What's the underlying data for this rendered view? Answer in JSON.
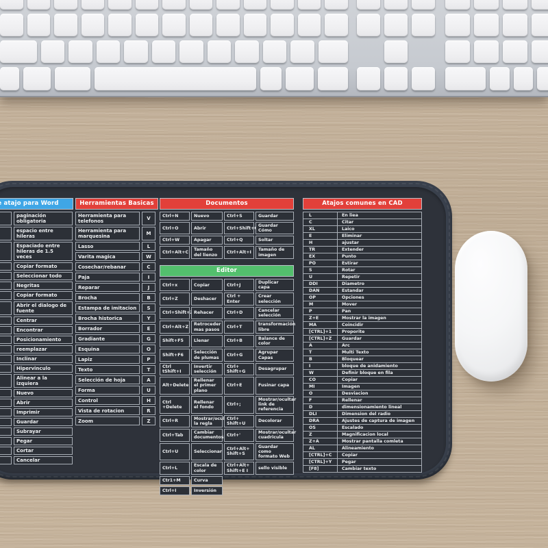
{
  "colors": {
    "pad_surface": "#2e323a",
    "pad_edge": "#39404c",
    "header_blue": "#3fa6e6",
    "header_red": "#e2403a",
    "header_green": "#53bf6d",
    "cell_background": "#2c3037",
    "cell_border": "#a9afb7",
    "text_light": "#eef0f2",
    "desk_wood": "#c2b09a",
    "keyboard_silver": "#c6cad0",
    "key_white": "#f3f3f5",
    "mouse_white": "#f5f6f7"
  },
  "word_section": {
    "title": "e atajo para Word",
    "rows": [
      {
        "key": "",
        "label": "paginación obligatoria"
      },
      {
        "key": "",
        "label": "espacio entre hileras"
      },
      {
        "key": "",
        "label": "Espaciado entre hileras de 1.5 veces"
      },
      {
        "key": "",
        "label": "Copiar formato"
      },
      {
        "key": "",
        "label": "Seleccionar todo"
      },
      {
        "key": "",
        "label": "Negritas"
      },
      {
        "key": "",
        "label": "Copiar formato"
      },
      {
        "key": "",
        "label": "Abrir el dialogo de fuente"
      },
      {
        "key": "",
        "label": "Centrar"
      },
      {
        "key": "",
        "label": "Encontrar"
      },
      {
        "key": "",
        "label": "Posicionamiento"
      },
      {
        "key": "",
        "label": "reemplazar"
      },
      {
        "key": "",
        "label": "Inclinar"
      },
      {
        "key": "",
        "label": "Hipervinculo"
      },
      {
        "key": "",
        "label": "Alinear a la izquiera"
      },
      {
        "key": "",
        "label": "Nuevo"
      },
      {
        "key": "",
        "label": "Abrir"
      },
      {
        "key": "",
        "label": "Imprimir"
      },
      {
        "key": "",
        "label": "Guardar"
      },
      {
        "key": "",
        "label": "Subrayar"
      },
      {
        "key": "",
        "label": "Pegar"
      },
      {
        "key": "",
        "label": "Cortar"
      },
      {
        "key": "",
        "label": "Cancelar"
      }
    ]
  },
  "tools_section": {
    "title": "Herramientas Basicas",
    "rows": [
      {
        "label": "Herramienta para telefonos",
        "key": "V"
      },
      {
        "label": "Herramienta para marquesina",
        "key": "M"
      },
      {
        "label": "Lasso",
        "key": "L"
      },
      {
        "label": "Varita magica",
        "key": "W"
      },
      {
        "label": "Cosechar/rebanar",
        "key": "C"
      },
      {
        "label": "Paja",
        "key": "I"
      },
      {
        "label": "Reparar",
        "key": "J"
      },
      {
        "label": "Brocha",
        "key": "B"
      },
      {
        "label": "Estampa de imitacion",
        "key": "S"
      },
      {
        "label": "Brocha historica",
        "key": "Y"
      },
      {
        "label": "Borrador",
        "key": "E"
      },
      {
        "label": "Gradiante",
        "key": "G"
      },
      {
        "label": "Esquina",
        "key": "O"
      },
      {
        "label": "Lapiz",
        "key": "P"
      },
      {
        "label": "Texto",
        "key": "T"
      },
      {
        "label": "Selección de hoja",
        "key": "A"
      },
      {
        "label": "Forma",
        "key": "U"
      },
      {
        "label": "Control",
        "key": "H"
      },
      {
        "label": "Vista de rotacion",
        "key": "R"
      },
      {
        "label": "Zoom",
        "key": "Z"
      }
    ]
  },
  "documents_section": {
    "title": "Documentos",
    "rows": [
      [
        "Ctrl+N",
        "Nuevo",
        "Ctrl+S",
        "Guardar"
      ],
      [
        "Ctrl+O",
        "Abrir",
        "Ctrl+Shift+C",
        "Guardar Cómo"
      ],
      [
        "Ctrl+W",
        "Apagar",
        "Ctrl+Q",
        "Soltar"
      ],
      [
        "Ctrl+Alt+C",
        "Tamaño del lienzo",
        "Ctrl+Alt+I",
        "Tamaño de imagen"
      ]
    ]
  },
  "editor_section": {
    "title": "Editor",
    "rows": [
      [
        "Ctrl+x",
        "Copiar",
        "Ctrl+J",
        "Duplicar capa"
      ],
      [
        "Ctrl+Z",
        "Deshacer",
        "Ctrl + Enter",
        "Crear selección"
      ],
      [
        "Ctrl+Shift+Z",
        "Rehacer",
        "Ctrl+D",
        "Cancelar selección"
      ],
      [
        "Ctrl+Alt+Z",
        "Retroceder mas pasos",
        "Ctrl+T",
        "transformación libre"
      ],
      [
        "Shift+F5",
        "Llenar",
        "Ctrl+B",
        "Balance de color"
      ],
      [
        "Shift+F6",
        "Selección de plumas",
        "Ctrl+G",
        "Agrupar Capas"
      ],
      [
        "Ctrl tShift+I",
        "Invertir selección",
        "Ctrl+ Shift+G",
        "Desagrupar"
      ],
      [
        "Alt+Delete",
        "Rellenar el primer plano",
        "Ctrl+E",
        "Fusinar capa"
      ],
      [
        "Ctrl +Delete",
        "Rellenar el fondo",
        "Ctrl+;",
        "Mostrar/ocultar link de referencia"
      ],
      [
        "Ctrl+R",
        "Mostrar/ocultar la regla",
        "Ctrl+ Shift+U",
        "Decolorar"
      ],
      [
        "Ctrl+Tab",
        "Cambiar documentos",
        "Ctrl+'",
        "Mostrar/ocultar cuadricula"
      ],
      [
        "Ctrl+U",
        "Seleccionar",
        "Ctrl+Alt+ Shift+S",
        "Guardar como formato Web"
      ],
      [
        "Ctrl+L",
        "Escala de color",
        "Ctrl+Alt+ Shift+E I",
        "sello visible"
      ],
      [
        "Ctr1+M",
        "Curva"
      ],
      [
        "Ctrl+I",
        "Inversión"
      ]
    ]
  },
  "cad_section": {
    "title": "Atajos comunes en CAD",
    "rows": [
      [
        "L",
        "En liea"
      ],
      [
        "C",
        "Citar"
      ],
      [
        "XL",
        "Laico"
      ],
      [
        "E",
        "Eliminar"
      ],
      [
        "H",
        "ajustar"
      ],
      [
        "TR",
        "Extender"
      ],
      [
        "EX",
        "Punto"
      ],
      [
        "PO",
        "Estirar"
      ],
      [
        "S",
        "Rotar"
      ],
      [
        "U",
        "Repetir"
      ],
      [
        "DDI",
        "Diametro"
      ],
      [
        "DAN",
        "Estandar"
      ],
      [
        "OP",
        "Opciones"
      ],
      [
        "M",
        "Mover"
      ],
      [
        "P",
        "Pan"
      ],
      [
        "Z+E",
        "Mostrar la imagen"
      ],
      [
        "MA",
        "Coincidir"
      ],
      [
        "[CTRL]+1",
        "Proporite"
      ],
      [
        "[CTRL]+Z",
        "Guardar"
      ],
      [
        "A",
        "Arc"
      ],
      [
        "T",
        "Multi Texto"
      ],
      [
        "B",
        "Bloquear"
      ],
      [
        "I",
        "bloque de anidamiento"
      ],
      [
        "W",
        "Definir bloque en fila"
      ],
      [
        "CO",
        "Copiar"
      ],
      [
        "MI",
        "Imagen"
      ],
      [
        "O",
        "Desviacion"
      ],
      [
        "F",
        "Rellenar"
      ],
      [
        "D",
        "dimensionamiento lineal"
      ],
      [
        "DLI",
        "Dimension del radio"
      ],
      [
        "DRA",
        "Ajustes de captura de imagen"
      ],
      [
        "OS",
        "Escalado"
      ],
      [
        "Z",
        "Magnificacion local"
      ],
      [
        "Z+A",
        "Mostrar pantalla comleta"
      ],
      [
        "AL",
        "Alineamiento"
      ],
      [
        "[CTRL]+C",
        "Copiar"
      ],
      [
        "[CTRL]+Y",
        "Pegar"
      ],
      [
        "[F8]",
        "Cambiar texto"
      ]
    ]
  }
}
